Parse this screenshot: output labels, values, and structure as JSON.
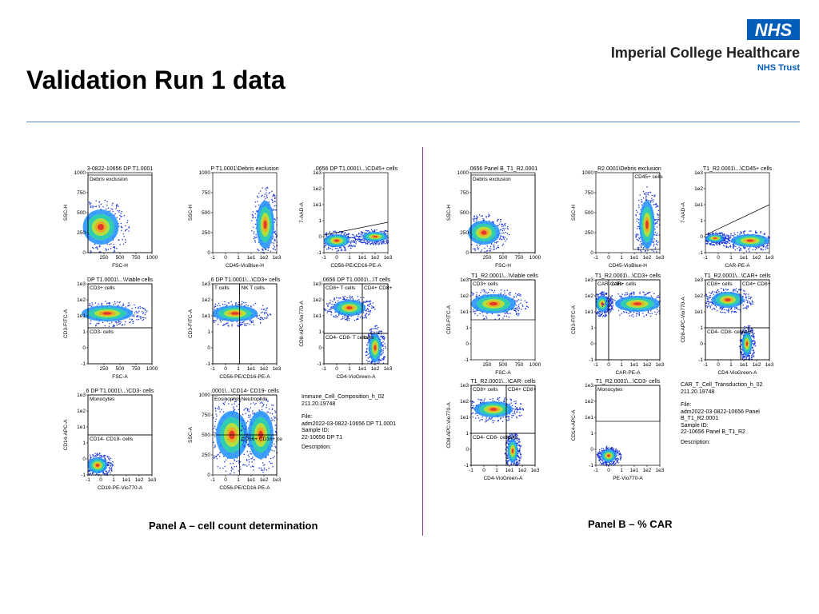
{
  "slide": {
    "title": "Validation Run 1 data"
  },
  "header": {
    "nhs_logo_text": "NHS",
    "org_name": "Imperial College Healthcare",
    "org_sub": "NHS Trust",
    "colors": {
      "nhs_blue": "#005eb8"
    }
  },
  "panels": {
    "a_label": "Panel A – cell count determination",
    "b_label": "Panel B – % CAR"
  },
  "info_a": {
    "experiment": "Immune_Cell_Composition_h_02",
    "version": "211.20.19748",
    "file_label": "File:",
    "file": "adm2022-03-0822-10656 DP T1.0001",
    "sample_label": "Sample ID:",
    "sample": "22-10656 DP T1",
    "desc_label": "Description:"
  },
  "info_b": {
    "experiment": "CAR_T_Cell_Transduction_h_02",
    "version": "211.20.19748",
    "file_label": "File:",
    "file_line1": "adm2022-03-0822-10656 Panel",
    "file_line2": "B_T1_R2.0001",
    "sample_label": "Sample ID:",
    "sample": "22-10656 Panel B_T1_R2",
    "desc_label": "Description:"
  },
  "chart_data": [
    {
      "id": "a1",
      "type": "scatter",
      "title": "3-0822-10656 DP T1.0001",
      "xlabel": "FSC-H",
      "ylabel": "SSC-H",
      "xticks": [
        "250",
        "500",
        "750",
        "1000"
      ],
      "yticks": [
        "1000",
        "750",
        "500",
        "250",
        "0"
      ],
      "gates": [
        "Debris exclusion"
      ]
    },
    {
      "id": "a2",
      "type": "scatter",
      "title": "P T1.0001\\Debris exclusion",
      "xlabel": "CD45-VioBlue-H",
      "ylabel": "SSC-H",
      "xticks": [
        "-1",
        "0",
        "1",
        "1e1",
        "1e2",
        "1e3"
      ],
      "yticks": [
        "1000",
        "750",
        "500",
        "250",
        "0"
      ],
      "gates": []
    },
    {
      "id": "a3",
      "type": "scatter",
      "title": ".0656 DP T1.0001\\...\\CD45+ cells",
      "xlabel": "CD56-PE/CD16-PE-A",
      "ylabel": "7-AAD-A",
      "xticks": [
        "-1",
        "0",
        "1",
        "1e1",
        "1e2",
        "1e3"
      ],
      "yticks": [
        "1e3",
        "1e2",
        "1e1",
        "1",
        "0",
        "-1"
      ],
      "gates": []
    },
    {
      "id": "a4",
      "type": "scatter",
      "title": "DP T1.0001\\...\\Viable cells",
      "xlabel": "FSC-A",
      "ylabel": "CD3-FITC-A",
      "xticks": [
        "250",
        "500",
        "750",
        "1000"
      ],
      "yticks": [
        "1e3",
        "1e2",
        "1e1",
        "1",
        "0",
        "-1"
      ],
      "gates": [
        "CD3+ cells",
        "CD3- cells"
      ]
    },
    {
      "id": "a5",
      "type": "scatter",
      "title": ".6 DP T1.0001\\...\\CD3+ cells",
      "xlabel": "CD56-PE/CD16-PE-A",
      "ylabel": "CD3-FITC-A",
      "xticks": [
        "-1",
        "0",
        "1",
        "1e1",
        "1e2",
        "1e3"
      ],
      "yticks": [
        "1e3",
        "1e2",
        "1e1",
        "1",
        "0",
        "-1"
      ],
      "gates": [
        "T cells",
        "NK T cells"
      ]
    },
    {
      "id": "a6",
      "type": "scatter",
      "title": ".0656 DP T1.0001\\...\\T cells",
      "xlabel": "CD4-VioGreen-A",
      "ylabel": "CD8-APC-Vio770-A",
      "xticks": [
        "-1",
        "0",
        "1",
        "1e1",
        "1e2",
        "1e3"
      ],
      "yticks": [
        "1e3",
        "1e2",
        "1e1",
        "1",
        "0",
        "-1"
      ],
      "gates": [
        "CD8+ T cells",
        "CD4+ CD8+",
        "CD4- CD8- T cells",
        "cells"
      ]
    },
    {
      "id": "a7",
      "type": "scatter",
      "title": "6 DP T1.0001\\...\\CD3- cells",
      "xlabel": "CD19-PE-Vio770-A",
      "ylabel": "CD14-APC-A",
      "xticks": [
        "-1",
        "0",
        "1",
        "1e1",
        "1e2",
        "1e3"
      ],
      "yticks": [
        "1e3",
        "1e2",
        "1e1",
        "1",
        "0",
        "-1"
      ],
      "gates": [
        "Monocytes",
        "CD14- CD19- cells"
      ]
    },
    {
      "id": "a8",
      "type": "scatter",
      "title": ".0001\\...\\CD14- CD19- cells",
      "xlabel": "CD56-PE/CD16-PE-A",
      "ylabel": "SSC-A",
      "xticks": [
        "-1",
        "0",
        "1",
        "1e1",
        "1e2",
        "1e3"
      ],
      "yticks": [
        "1000",
        "750",
        "500",
        "250",
        "0"
      ],
      "gates": [
        "Eosinophils",
        "Neutrophils",
        "CD56+ CD16+ ce"
      ]
    },
    {
      "id": "b1",
      "type": "scatter",
      "title": ".0656 Panel B_T1_R2.0001",
      "xlabel": "FSC-H",
      "ylabel": "SSC-H",
      "xticks": [
        "250",
        "500",
        "750",
        "1000"
      ],
      "yticks": [
        "1000",
        "750",
        "500",
        "250",
        "0"
      ],
      "gates": [
        "Debris exclusion"
      ]
    },
    {
      "id": "b2",
      "type": "scatter",
      "title": "_R2.0001\\Debris exclusion",
      "xlabel": "CD45-VioBlue-H",
      "ylabel": "SSC-H",
      "xticks": [
        "-1",
        "0",
        "1",
        "1e1",
        "1e2",
        "1e3"
      ],
      "yticks": [
        "1000",
        "750",
        "500",
        "250",
        "0"
      ],
      "gates": [
        "CD45+ cells"
      ]
    },
    {
      "id": "b3",
      "type": "scatter",
      "title": "T1_R2.0001\\...\\CD45+ cells",
      "xlabel": "CAR-PE-A",
      "ylabel": "7-AAD-A",
      "xticks": [
        "-1",
        "0",
        "1",
        "1e1",
        "1e2",
        "1e3"
      ],
      "yticks": [
        "1e3",
        "1e2",
        "1e1",
        "1",
        "0",
        "-1"
      ],
      "gates": []
    },
    {
      "id": "b4",
      "type": "scatter",
      "title": "_T1_R2.0001\\...\\Viable cells",
      "xlabel": "FSC-A",
      "ylabel": "CD3-FITC-A",
      "xticks": [
        "250",
        "500",
        "750",
        "1000"
      ],
      "yticks": [
        "1e3",
        "1e2",
        "1e1",
        "1",
        "0",
        "-1"
      ],
      "gates": [
        "CD3+ cells"
      ]
    },
    {
      "id": "b5",
      "type": "scatter",
      "title": "T1_R2.0001\\...\\CD3+ cells",
      "xlabel": "CAR-PE-A",
      "ylabel": "CD3-FITC-A",
      "xticks": [
        "-1",
        "0",
        "1",
        "1e1",
        "1e2",
        "1e3"
      ],
      "yticks": [
        "1e3",
        "1e2",
        "1e1",
        "1",
        "0",
        "-1"
      ],
      "gates": [
        "CAR- cells",
        "CAR+ cells"
      ]
    },
    {
      "id": "b6",
      "type": "scatter",
      "title": "T1_R2.0001\\...\\CAR+ cells",
      "xlabel": "CD4-VioGreen-A",
      "ylabel": "CD8-APC-Vio770-A",
      "xticks": [
        "-1",
        "0",
        "1",
        "1e1",
        "1e2",
        "1e3"
      ],
      "yticks": [
        "1e3",
        "1e2",
        "1e1",
        "1",
        "0",
        "-1"
      ],
      "gates": [
        "CD8+ cells",
        "CD4+ CD8+",
        "CD4- CD8- cells",
        "cells"
      ]
    },
    {
      "id": "b7",
      "type": "scatter",
      "title": "T1_R2.0001\\...\\CAR- cells",
      "xlabel": "CD4-VioGreen-A",
      "ylabel": "CD8-APC-Vio770-A",
      "xticks": [
        "-1",
        "0",
        "1",
        "1e1",
        "1e2",
        "1e3"
      ],
      "yticks": [
        "1e3",
        "1e2",
        "1e1",
        "1",
        "0",
        "-1"
      ],
      "gates": [
        "CD8+ cells",
        "CD4+ CD8+",
        "CD4- CD8- cells",
        "cells"
      ]
    },
    {
      "id": "b8",
      "type": "scatter",
      "title": "T1_R2.0001\\...\\CD3- cells",
      "xlabel": "PE-Vio770-A",
      "ylabel": "CD14-APC-A",
      "xticks": [
        "-1",
        "0",
        "1",
        "1e1",
        "1e2",
        "1e3"
      ],
      "yticks": [
        "1e3",
        "1e2",
        "1e1",
        "1",
        "0",
        "-1"
      ],
      "gates": [
        "Monocytes"
      ]
    }
  ]
}
